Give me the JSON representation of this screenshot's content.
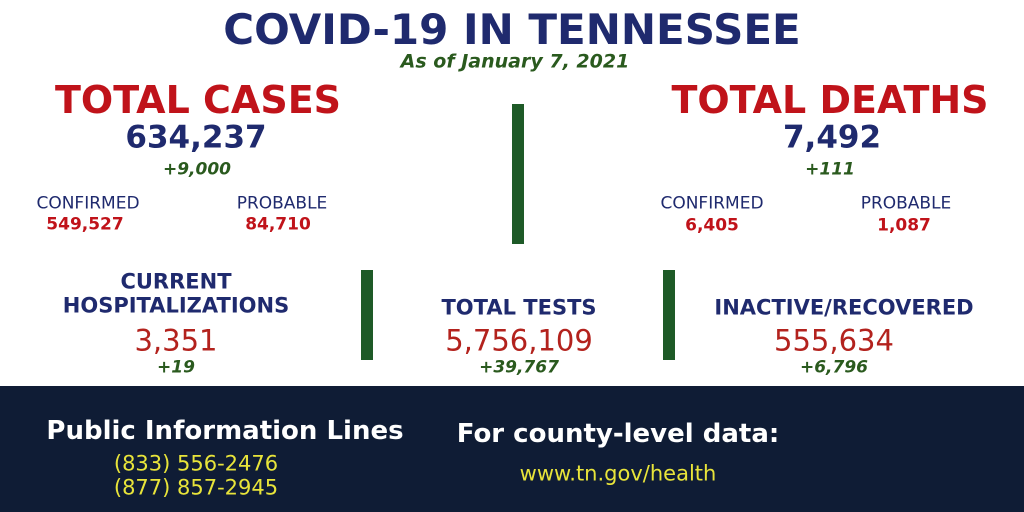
{
  "header": {
    "title": "COVID-19 IN TENNESSEE",
    "subtitle": "As of January 7, 2021"
  },
  "cases": {
    "label": "TOTAL CASES",
    "total": "634,237",
    "change": "+9,000",
    "confirmed_label": "CONFIRMED",
    "confirmed": "549,527",
    "probable_label": "PROBABLE",
    "probable": "84,710"
  },
  "deaths": {
    "label": "TOTAL DEATHS",
    "total": "7,492",
    "change": "+111",
    "confirmed_label": "CONFIRMED",
    "confirmed": "6,405",
    "probable_label": "PROBABLE",
    "probable": "1,087"
  },
  "hospitalizations": {
    "label_lines": [
      "CURRENT",
      "HOSPITALIZATIONS"
    ],
    "value": "3,351",
    "change": "+19"
  },
  "tests": {
    "label": "TOTAL TESTS",
    "value": "5,756,109",
    "change": "+39,767"
  },
  "recovered": {
    "label": "INACTIVE/RECOVERED",
    "value": "555,634",
    "change": "+6,796"
  },
  "footer": {
    "info_title": "Public Information Lines",
    "phones": [
      "(833) 556-2476",
      "(877) 857-2945"
    ],
    "data_title": "For county-level data:",
    "url": "www.tn.gov/health"
  }
}
